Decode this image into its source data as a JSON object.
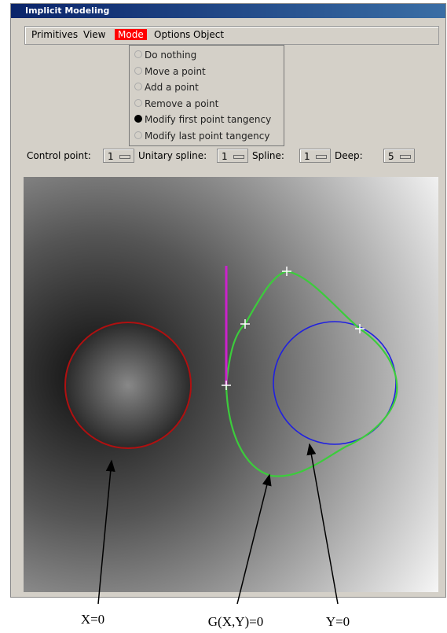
{
  "window": {
    "title": "Implicit Modeling"
  },
  "menu": [
    "Primitives",
    "View",
    "Mode",
    "Options",
    "Object"
  ],
  "dropdown": [
    "Do nothing",
    "Move a point",
    "Add a point",
    "Remove a point",
    "Modify first point tangency",
    "Modify last point tangency"
  ],
  "toolbar": [
    {
      "label": "Control point:",
      "value": "1"
    },
    {
      "label": "Unitary spline:",
      "value": "1"
    },
    {
      "label": "Spline:",
      "value": "1"
    },
    {
      "label": "Deep:",
      "value": "5"
    }
  ],
  "annotations": [
    "X=0",
    "G(X,Y)=0",
    "Y=0"
  ]
}
